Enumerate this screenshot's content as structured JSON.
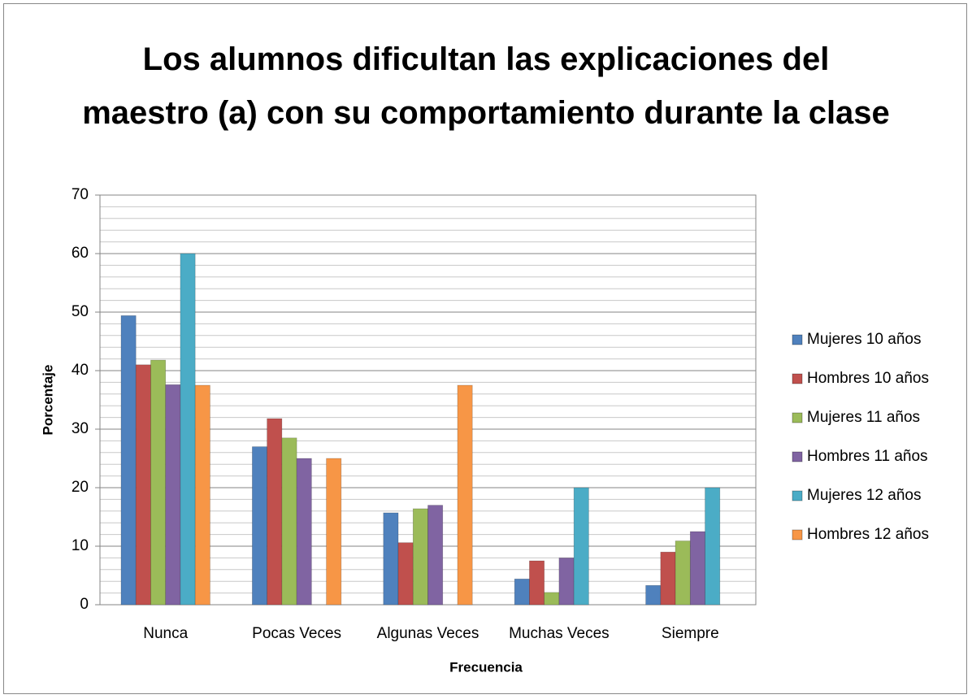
{
  "chart_data": {
    "type": "bar",
    "title": "Los alumnos dificultan las explicaciones del maestro (a) con su comportamiento durante la clase",
    "x_label": "Frecuencia",
    "y_label": "Porcentaje",
    "categories": [
      "Nunca",
      "Pocas Veces",
      "Algunas Veces",
      "Muchas Veces",
      "Siempre"
    ],
    "series": [
      {
        "name": "Mujeres 10 años",
        "color": "#4f81bd",
        "values": [
          49.4,
          27,
          15.7,
          4.4,
          3.3
        ]
      },
      {
        "name": "Hombres 10 años",
        "color": "#c0504d",
        "values": [
          41,
          31.8,
          10.6,
          7.5,
          9
        ]
      },
      {
        "name": "Mujeres 11 años",
        "color": "#9bbb59",
        "values": [
          41.8,
          28.5,
          16.4,
          2.1,
          10.9
        ]
      },
      {
        "name": "Hombres 11 años",
        "color": "#8064a2",
        "values": [
          37.6,
          25,
          17,
          8,
          12.5
        ]
      },
      {
        "name": "Mujeres 12 años",
        "color": "#4bacc6",
        "values": [
          60,
          0,
          0,
          20,
          20
        ]
      },
      {
        "name": "Hombres 12 años",
        "color": "#f79646",
        "values": [
          37.5,
          25,
          37.5,
          0,
          0
        ]
      }
    ],
    "ylim": [
      0,
      70
    ],
    "yticks": [
      0,
      10,
      20,
      30,
      40,
      50,
      60,
      70
    ],
    "yminorticks": [
      2,
      4,
      6,
      8,
      12,
      14,
      16,
      18,
      22,
      24,
      26,
      28,
      32,
      34,
      36,
      38,
      42,
      44,
      46,
      48,
      52,
      54,
      56,
      58,
      62,
      64,
      66,
      68
    ],
    "grid": true,
    "legend": "right"
  }
}
